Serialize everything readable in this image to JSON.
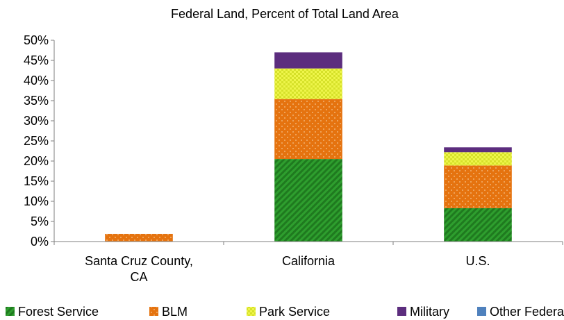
{
  "chart_data": {
    "type": "bar",
    "stacked": true,
    "title": "Federal Land, Percent of Total Land Area",
    "xlabel": "",
    "ylabel": "",
    "ylim": [
      0,
      50
    ],
    "y_ticks": [
      "0%",
      "5%",
      "10%",
      "15%",
      "20%",
      "25%",
      "30%",
      "35%",
      "40%",
      "45%",
      "50%"
    ],
    "categories": [
      [
        "Santa Cruz County,",
        "CA"
      ],
      [
        "California"
      ],
      [
        "U.S."
      ]
    ],
    "series": [
      {
        "name": "Forest Service",
        "color": "#2e9e2e",
        "pattern": "diagonal-stripes",
        "values": [
          0.0,
          20.5,
          8.3
        ]
      },
      {
        "name": "BLM",
        "color": "#e5730f",
        "pattern": "dots",
        "values": [
          1.9,
          14.9,
          10.6
        ]
      },
      {
        "name": "Park Service",
        "color": "#ebf23a",
        "pattern": "checker",
        "values": [
          0.0,
          7.6,
          3.3
        ]
      },
      {
        "name": "Military",
        "color": "#5c2d7e",
        "pattern": "solid",
        "values": [
          0.0,
          4.0,
          1.2
        ]
      },
      {
        "name": "Other Federal",
        "color": "#4f81bd",
        "pattern": "solid",
        "values": [
          0.0,
          0.0,
          0.0
        ]
      }
    ],
    "grid": false,
    "legend_position": "bottom"
  }
}
